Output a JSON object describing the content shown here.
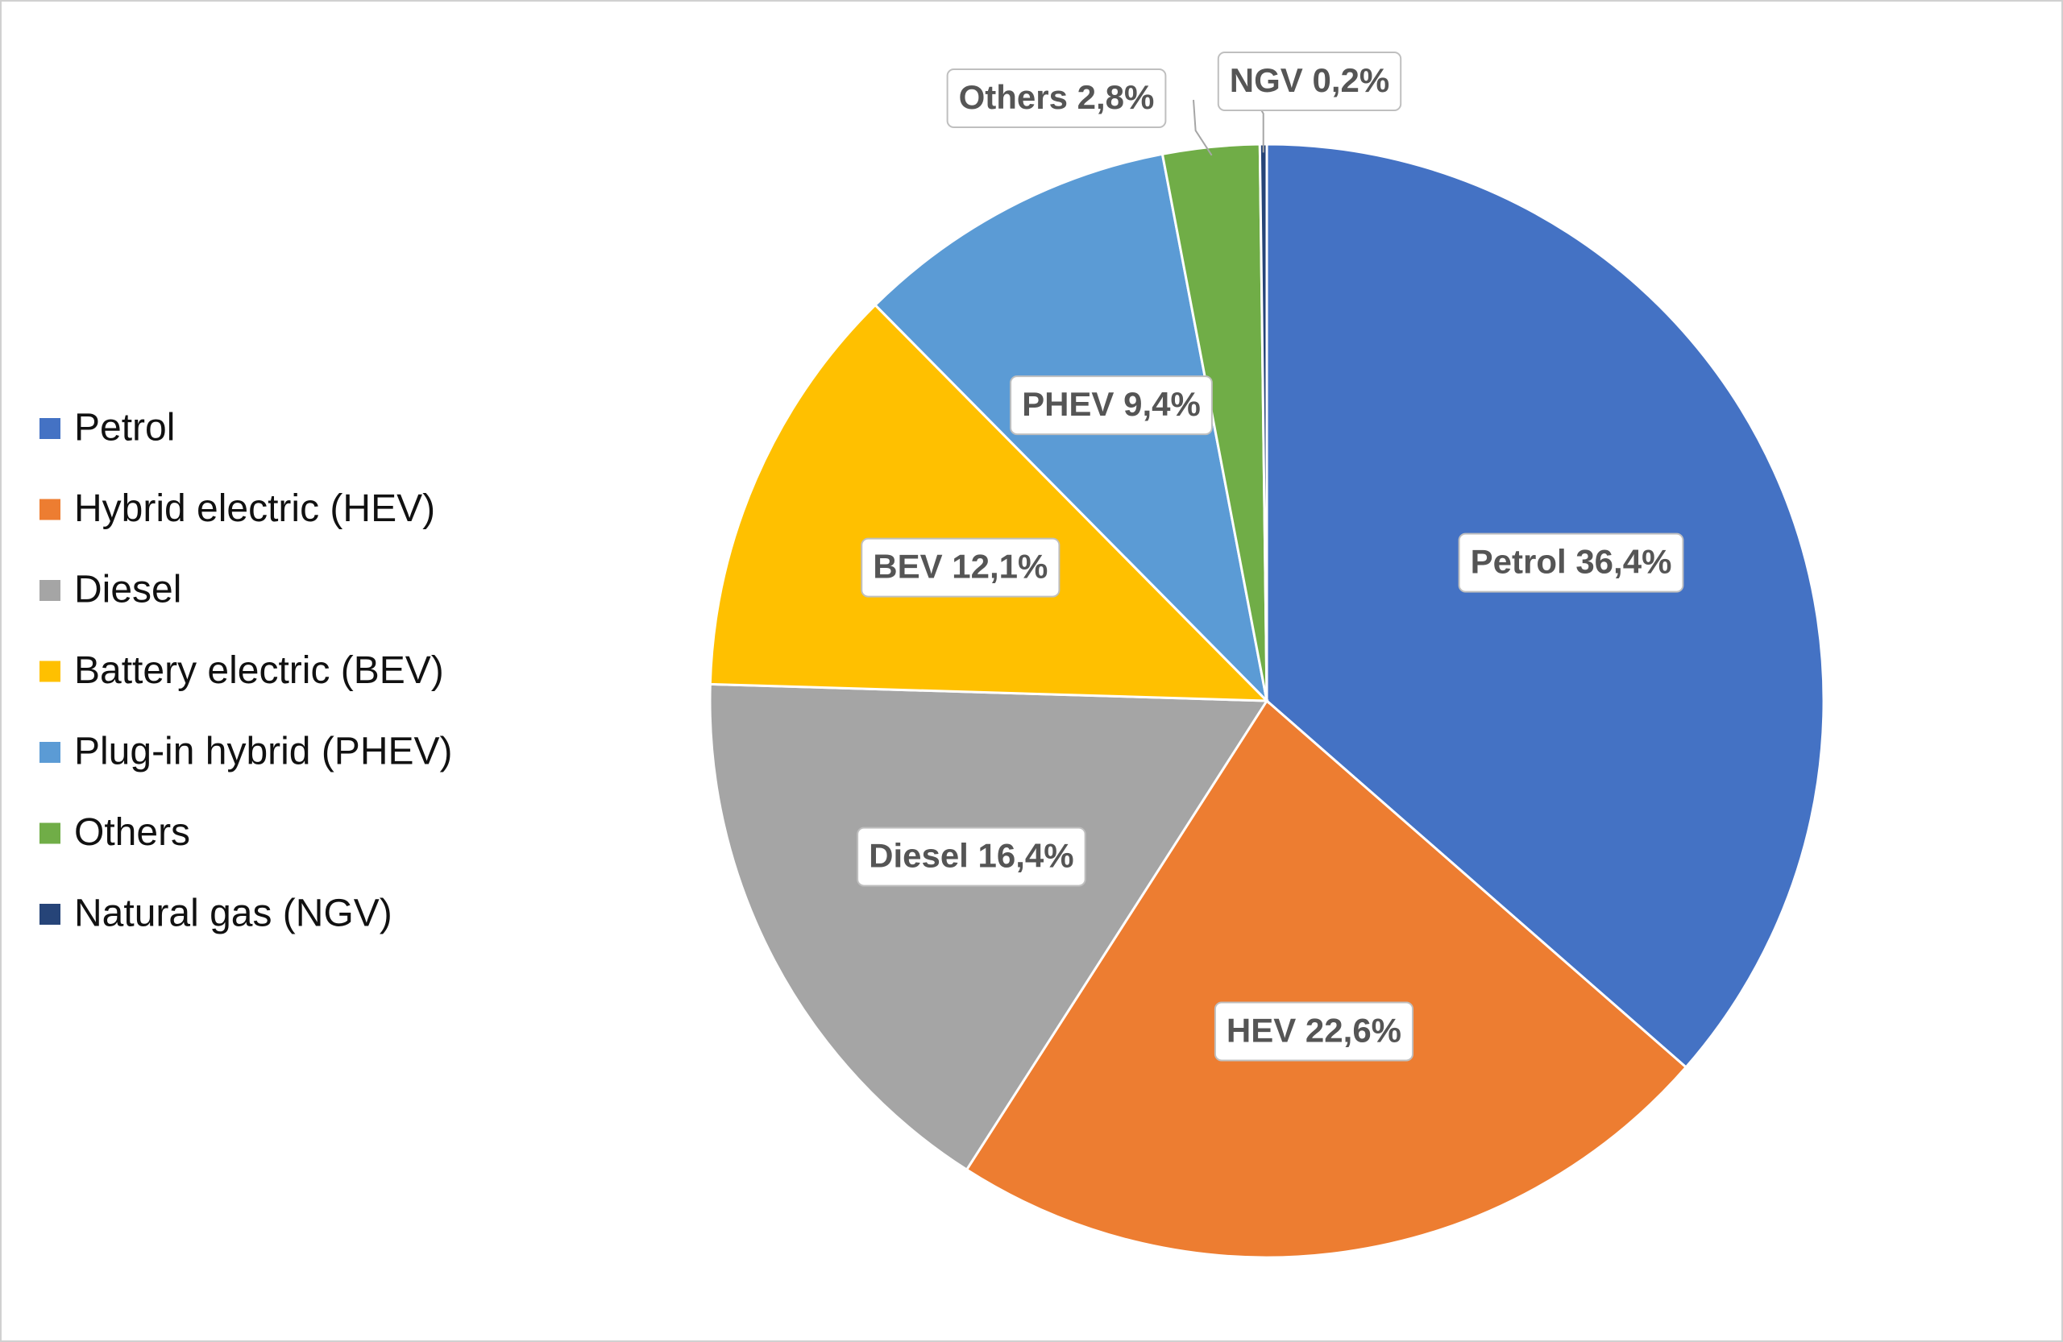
{
  "chart_data": {
    "type": "pie",
    "categories": [
      "Petrol",
      "Hybrid electric (HEV)",
      "Diesel",
      "Battery electric (BEV)",
      "Plug-in hybrid (PHEV)",
      "Others",
      "Natural gas (NGV)"
    ],
    "values": [
      36.4,
      22.6,
      16.4,
      12.1,
      9.4,
      2.8,
      0.2
    ],
    "value_labels": [
      "Petrol 36,4%",
      "HEV 22,6%",
      "Diesel 16,4%",
      "BEV 12,1%",
      "PHEV 9,4%",
      "Others 2,8%",
      "NGV 0,2%"
    ],
    "colors": [
      "#4472c4",
      "#ed7d31",
      "#a5a5a5",
      "#ffc000",
      "#5b9bd5",
      "#70ad47",
      "#264478"
    ],
    "legend": "left"
  }
}
